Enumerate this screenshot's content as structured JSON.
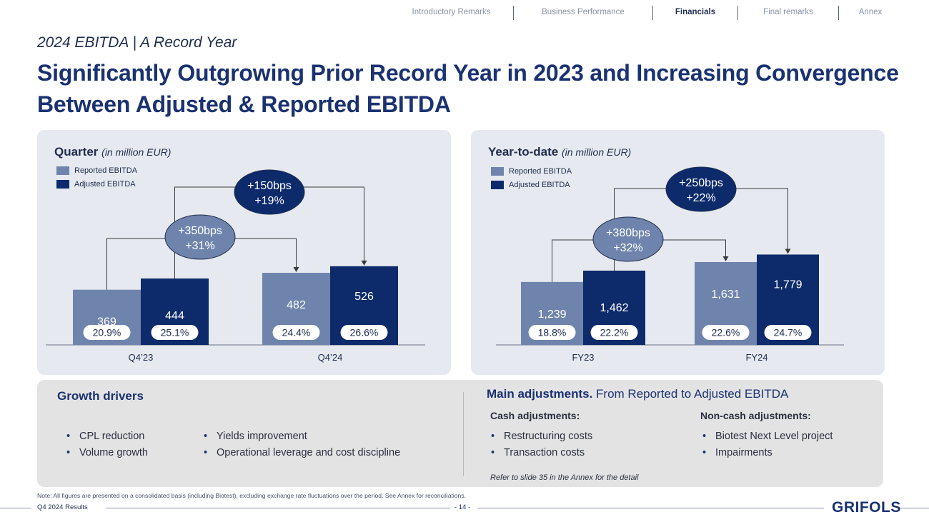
{
  "nav": {
    "items": [
      "Introductory Remarks",
      "Business Performance",
      "Financials",
      "Final remarks",
      "Annex"
    ],
    "active": "Financials"
  },
  "subtitle": "2024 EBITDA | A Record Year",
  "headline": "Significantly Outgrowing Prior Record Year in 2023 and Increasing Convergence Between Adjusted & Reported EBITDA",
  "colors": {
    "reported": "#6f84ad",
    "adjusted": "#0d2a6b",
    "panel": "#e6e9ef",
    "title": "#1a3272"
  },
  "chart_data": [
    {
      "type": "bar",
      "title": "Quarter",
      "title_note": "(in million EUR)",
      "categories": [
        "Q4’23",
        "Q4’24"
      ],
      "series": [
        {
          "name": "Reported EBITDA",
          "values": [
            369,
            482
          ],
          "margins": [
            "20.9%",
            "24.4%"
          ]
        },
        {
          "name": "Adjusted EBITDA",
          "values": [
            444,
            526
          ],
          "margins": [
            "25.1%",
            "26.6%"
          ]
        }
      ],
      "ylim": [
        0,
        600
      ],
      "annotations": [
        {
          "line1": "+350bps",
          "line2": "+31%",
          "from": "Reported EBITDA",
          "to": "Reported EBITDA"
        },
        {
          "line1": "+150bps",
          "line2": "+19%",
          "from": "Adjusted EBITDA",
          "to": "Adjusted EBITDA"
        }
      ]
    },
    {
      "type": "bar",
      "title": "Year-to-date",
      "title_note": "(in million EUR)",
      "categories": [
        "FY23",
        "FY24"
      ],
      "series": [
        {
          "name": "Reported EBITDA",
          "values": [
            1239,
            1631
          ],
          "labels": [
            "1,239",
            "1,631"
          ],
          "margins": [
            "18.8%",
            "22.6%"
          ]
        },
        {
          "name": "Adjusted EBITDA",
          "values": [
            1462,
            1779
          ],
          "labels": [
            "1,462",
            "1,779"
          ],
          "margins": [
            "22.2%",
            "24.7%"
          ]
        }
      ],
      "ylim": [
        0,
        2050
      ],
      "annotations": [
        {
          "line1": "+380bps",
          "line2": "+32%",
          "from": "Reported EBITDA",
          "to": "Reported EBITDA"
        },
        {
          "line1": "+250bps",
          "line2": "+22%",
          "from": "Adjusted EBITDA",
          "to": "Adjusted EBITDA"
        }
      ]
    }
  ],
  "growth": {
    "title": "Growth drivers",
    "col1": [
      "CPL reduction",
      "Volume growth"
    ],
    "col2": [
      "Yields improvement",
      "Operational leverage and cost discipline"
    ]
  },
  "adjustments": {
    "title_bold": "Main adjustments.",
    "title_rest": " From Reported to Adjusted EBITDA",
    "cash_title": "Cash adjustments:",
    "cash_items": [
      "Restructuring costs",
      "Transaction costs"
    ],
    "noncash_title": "Non-cash adjustments:",
    "noncash_items": [
      "Biotest Next Level project",
      "Impairments"
    ],
    "refer": "Refer to slide 35 in the Annex for the detail"
  },
  "note": "Note: All figures are presented on a consolidated basis (including Biotest), excluding exchange rate fluctuations over the period. See Annex for reconciliations.",
  "footer": {
    "left": "Q4 2024 Results",
    "page": "- 14 -",
    "logo": "GRIFOLS"
  }
}
